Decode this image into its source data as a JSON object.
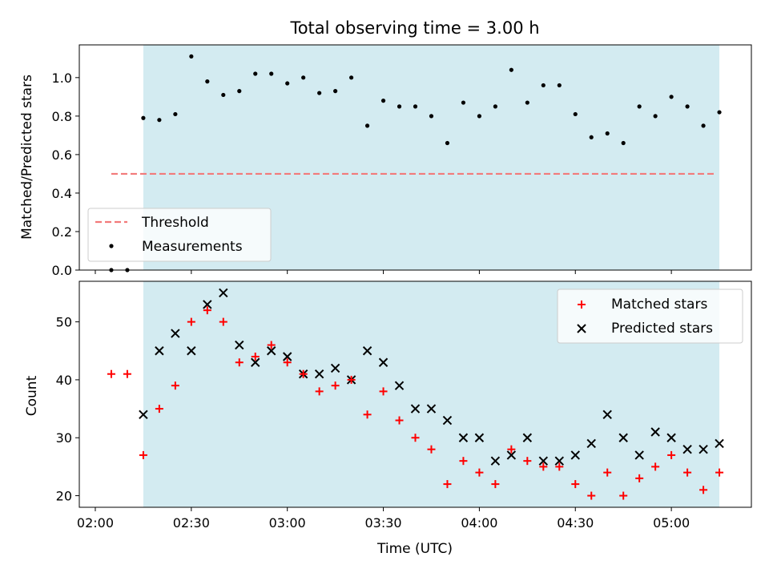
{
  "chart_data": [
    {
      "type": "scatter",
      "title": "Total observing time = 3.00 h",
      "ylabel": "Matched/Predicted stars",
      "xlabel": "",
      "ylim": [
        0,
        1.17
      ],
      "yticks": [
        0.0,
        0.2,
        0.4,
        0.6,
        0.8,
        1.0
      ],
      "ytick_labels": [
        "0.0",
        "0.2",
        "0.4",
        "0.6",
        "0.8",
        "1.0"
      ],
      "xlim": [
        "01:55",
        "05:25"
      ],
      "xticks": [
        "02:00",
        "02:30",
        "03:00",
        "03:30",
        "04:00",
        "04:30",
        "05:00"
      ],
      "x_tick_labels_shown": false,
      "shaded_span": {
        "x_start": "02:15",
        "x_end": "05:15",
        "color": "#d3ebf1"
      },
      "threshold": {
        "name": "Threshold",
        "y": 0.5,
        "x_start": "02:05",
        "x_end": "05:14",
        "color": "#f27a7a",
        "style": "dashed"
      },
      "series": [
        {
          "name": "Measurements",
          "marker": "dot",
          "color": "#000000",
          "points": [
            [
              "02:05",
              0.0
            ],
            [
              "02:10",
              0.0
            ],
            [
              "02:15",
              0.79
            ],
            [
              "02:20",
              0.78
            ],
            [
              "02:25",
              0.81
            ],
            [
              "02:30",
              1.11
            ],
            [
              "02:35",
              0.98
            ],
            [
              "02:40",
              0.91
            ],
            [
              "02:45",
              0.93
            ],
            [
              "02:50",
              1.02
            ],
            [
              "02:55",
              1.02
            ],
            [
              "03:00",
              0.97
            ],
            [
              "03:05",
              1.0
            ],
            [
              "03:10",
              0.92
            ],
            [
              "03:15",
              0.93
            ],
            [
              "03:20",
              1.0
            ],
            [
              "03:25",
              0.75
            ],
            [
              "03:30",
              0.88
            ],
            [
              "03:35",
              0.85
            ],
            [
              "03:40",
              0.85
            ],
            [
              "03:45",
              0.8
            ],
            [
              "03:50",
              0.66
            ],
            [
              "03:55",
              0.87
            ],
            [
              "04:00",
              0.8
            ],
            [
              "04:05",
              0.85
            ],
            [
              "04:10",
              1.04
            ],
            [
              "04:15",
              0.87
            ],
            [
              "04:20",
              0.96
            ],
            [
              "04:25",
              0.96
            ],
            [
              "04:30",
              0.81
            ],
            [
              "04:35",
              0.69
            ],
            [
              "04:40",
              0.71
            ],
            [
              "04:45",
              0.66
            ],
            [
              "04:50",
              0.85
            ],
            [
              "04:55",
              0.8
            ],
            [
              "05:00",
              0.9
            ],
            [
              "05:05",
              0.85
            ],
            [
              "05:10",
              0.75
            ],
            [
              "05:15",
              0.82
            ]
          ]
        }
      ],
      "legend": {
        "placement": "lower-left",
        "entries": [
          "Threshold",
          "Measurements"
        ]
      },
      "grid": false
    },
    {
      "type": "scatter",
      "title": "",
      "ylabel": "Count",
      "xlabel": "Time (UTC)",
      "ylim": [
        18,
        57
      ],
      "yticks": [
        20,
        30,
        40,
        50
      ],
      "ytick_labels": [
        "20",
        "30",
        "40",
        "50"
      ],
      "xlim": [
        "01:55",
        "05:25"
      ],
      "xticks": [
        "02:00",
        "02:30",
        "03:00",
        "03:30",
        "04:00",
        "04:30",
        "05:00"
      ],
      "xtick_labels": [
        "02:00",
        "02:30",
        "03:00",
        "03:30",
        "04:00",
        "04:30",
        "05:00"
      ],
      "shaded_span": {
        "x_start": "02:15",
        "x_end": "05:15",
        "color": "#d3ebf1"
      },
      "series": [
        {
          "name": "Matched stars",
          "marker": "plus",
          "color": "#ff0000",
          "points": [
            [
              "02:05",
              41
            ],
            [
              "02:10",
              41
            ],
            [
              "02:15",
              27
            ],
            [
              "02:20",
              35
            ],
            [
              "02:25",
              39
            ],
            [
              "02:30",
              50
            ],
            [
              "02:35",
              52
            ],
            [
              "02:40",
              50
            ],
            [
              "02:45",
              43
            ],
            [
              "02:50",
              44
            ],
            [
              "02:55",
              46
            ],
            [
              "03:00",
              43
            ],
            [
              "03:05",
              41
            ],
            [
              "03:10",
              38
            ],
            [
              "03:15",
              39
            ],
            [
              "03:20",
              40
            ],
            [
              "03:25",
              34
            ],
            [
              "03:30",
              38
            ],
            [
              "03:35",
              33
            ],
            [
              "03:40",
              30
            ],
            [
              "03:45",
              28
            ],
            [
              "03:50",
              22
            ],
            [
              "03:55",
              26
            ],
            [
              "04:00",
              24
            ],
            [
              "04:05",
              22
            ],
            [
              "04:10",
              28
            ],
            [
              "04:15",
              26
            ],
            [
              "04:20",
              25
            ],
            [
              "04:25",
              25
            ],
            [
              "04:30",
              22
            ],
            [
              "04:35",
              20
            ],
            [
              "04:40",
              24
            ],
            [
              "04:45",
              20
            ],
            [
              "04:50",
              23
            ],
            [
              "04:55",
              25
            ],
            [
              "05:00",
              27
            ],
            [
              "05:05",
              24
            ],
            [
              "05:10",
              21
            ],
            [
              "05:15",
              24
            ]
          ]
        },
        {
          "name": "Predicted stars",
          "marker": "x",
          "color": "#000000",
          "points": [
            [
              "02:15",
              34
            ],
            [
              "02:20",
              45
            ],
            [
              "02:25",
              48
            ],
            [
              "02:30",
              45
            ],
            [
              "02:35",
              53
            ],
            [
              "02:40",
              55
            ],
            [
              "02:45",
              46
            ],
            [
              "02:50",
              43
            ],
            [
              "02:55",
              45
            ],
            [
              "03:00",
              44
            ],
            [
              "03:05",
              41
            ],
            [
              "03:10",
              41
            ],
            [
              "03:15",
              42
            ],
            [
              "03:20",
              40
            ],
            [
              "03:25",
              45
            ],
            [
              "03:30",
              43
            ],
            [
              "03:35",
              39
            ],
            [
              "03:40",
              35
            ],
            [
              "03:45",
              35
            ],
            [
              "03:50",
              33
            ],
            [
              "03:55",
              30
            ],
            [
              "04:00",
              30
            ],
            [
              "04:05",
              26
            ],
            [
              "04:10",
              27
            ],
            [
              "04:15",
              30
            ],
            [
              "04:20",
              26
            ],
            [
              "04:25",
              26
            ],
            [
              "04:30",
              27
            ],
            [
              "04:35",
              29
            ],
            [
              "04:40",
              34
            ],
            [
              "04:45",
              30
            ],
            [
              "04:50",
              27
            ],
            [
              "04:55",
              31
            ],
            [
              "05:00",
              30
            ],
            [
              "05:05",
              28
            ],
            [
              "05:10",
              28
            ],
            [
              "05:15",
              29
            ]
          ]
        }
      ],
      "legend": {
        "placement": "upper-right",
        "entries": [
          "Matched stars",
          "Predicted stars"
        ]
      },
      "grid": false
    }
  ]
}
